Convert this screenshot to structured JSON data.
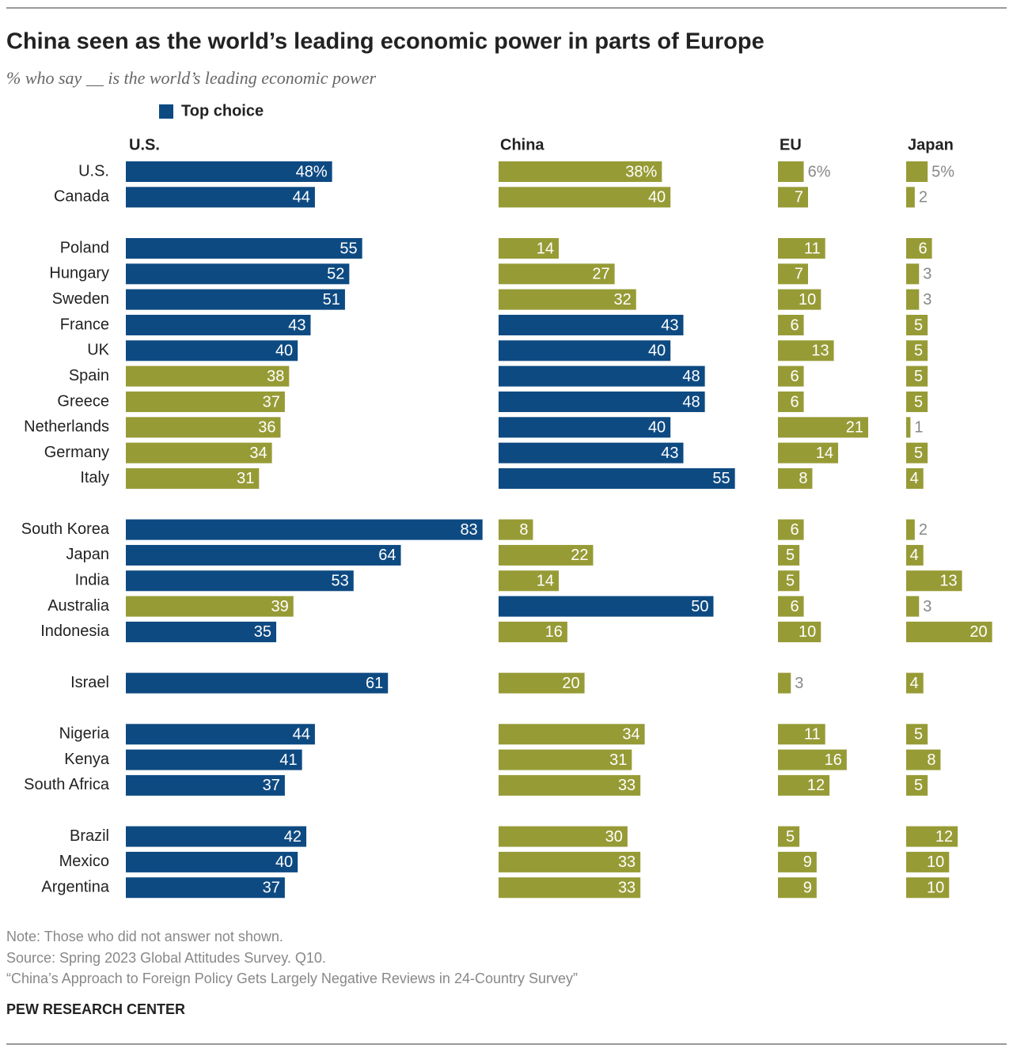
{
  "chart_data": {
    "type": "bar",
    "title": "China seen as the world’s leading economic power in parts of Europe",
    "subtitle": "% who say __ is the world’s leading economic power",
    "legend_label": "Top choice",
    "color": "#979b36",
    "top_color": "#0e4a82",
    "categories": [
      [
        "U.S.",
        "Canada"
      ],
      [
        "Poland",
        "Hungary",
        "Sweden",
        "France",
        "UK",
        "Spain",
        "Greece",
        "Netherlands",
        "Germany",
        "Italy"
      ],
      [
        "South Korea",
        "Japan",
        "India",
        "Australia",
        "Indonesia"
      ],
      [
        "Israel"
      ],
      [
        "Nigeria",
        "Kenya",
        "South Africa"
      ],
      [
        "Brazil",
        "Mexico",
        "Argentina"
      ]
    ],
    "series": [
      {
        "name": "U.S.",
        "values": [
          [
            48,
            44
          ],
          [
            55,
            52,
            51,
            43,
            40,
            38,
            37,
            36,
            34,
            31
          ],
          [
            83,
            64,
            53,
            39,
            35
          ],
          [
            61
          ],
          [
            44,
            41,
            37
          ],
          [
            42,
            40,
            37
          ]
        ],
        "value_labels": [
          [
            "48%",
            "44"
          ],
          [
            "55",
            "52",
            "51",
            "43",
            "40",
            "38",
            "37",
            "36",
            "34",
            "31"
          ],
          [
            "83",
            "64",
            "53",
            "39",
            "35"
          ],
          [
            "61"
          ],
          [
            "44",
            "41",
            "37"
          ],
          [
            "42",
            "40",
            "37"
          ]
        ]
      },
      {
        "name": "China",
        "values": [
          [
            38,
            40
          ],
          [
            14,
            27,
            32,
            43,
            40,
            48,
            48,
            40,
            43,
            55
          ],
          [
            8,
            22,
            14,
            50,
            16
          ],
          [
            20
          ],
          [
            34,
            31,
            33
          ],
          [
            30,
            33,
            33
          ]
        ],
        "value_labels": [
          [
            "38%",
            "40"
          ],
          [
            "14",
            "27",
            "32",
            "43",
            "40",
            "48",
            "48",
            "40",
            "43",
            "55"
          ],
          [
            "8",
            "22",
            "14",
            "50",
            "16"
          ],
          [
            "20"
          ],
          [
            "34",
            "31",
            "33"
          ],
          [
            "30",
            "33",
            "33"
          ]
        ]
      },
      {
        "name": "EU",
        "values": [
          [
            6,
            7
          ],
          [
            11,
            7,
            10,
            6,
            13,
            6,
            6,
            21,
            14,
            8
          ],
          [
            6,
            5,
            5,
            6,
            10
          ],
          [
            3
          ],
          [
            11,
            16,
            12
          ],
          [
            5,
            9,
            9
          ]
        ],
        "value_labels": [
          [
            "6%",
            "7"
          ],
          [
            "11",
            "7",
            "10",
            "6",
            "13",
            "6",
            "6",
            "21",
            "14",
            "8"
          ],
          [
            "6",
            "5",
            "5",
            "6",
            "10"
          ],
          [
            "3"
          ],
          [
            "11",
            "16",
            "12"
          ],
          [
            "5",
            "9",
            "9"
          ]
        ]
      },
      {
        "name": "Japan",
        "values": [
          [
            5,
            2
          ],
          [
            6,
            3,
            3,
            5,
            5,
            5,
            5,
            1,
            5,
            4
          ],
          [
            2,
            4,
            13,
            3,
            20
          ],
          [
            4
          ],
          [
            5,
            8,
            5
          ],
          [
            12,
            10,
            10
          ]
        ],
        "value_labels": [
          [
            "5%",
            "2"
          ],
          [
            "6",
            "3",
            "3",
            "5",
            "5",
            "5",
            "5",
            "1",
            "5",
            "4"
          ],
          [
            "2",
            "4",
            "13",
            "3",
            "20"
          ],
          [
            "4"
          ],
          [
            "5",
            "8",
            "5"
          ],
          [
            "12",
            "10",
            "10"
          ]
        ]
      }
    ],
    "note": "Note: Those who did not answer not shown.",
    "source": "Source: Spring 2023 Global Attitudes Survey. Q10.",
    "citation": "“China’s Approach to Foreign Policy Gets Largely Negative Reviews in 24-Country Survey”",
    "credit": "PEW RESEARCH CENTER"
  }
}
